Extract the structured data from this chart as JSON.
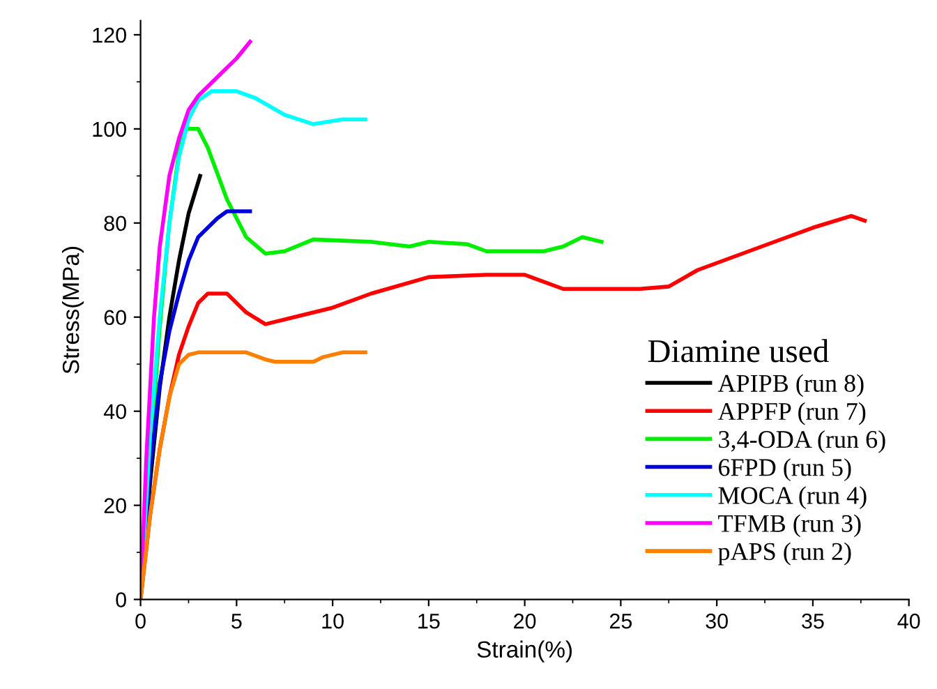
{
  "chart_data": {
    "type": "line",
    "xlabel": "Strain(%)",
    "ylabel": "Stress(MPa)",
    "legend_title": "Diamine used",
    "legend": "bottom right",
    "grid": false,
    "marker": "none",
    "line_style": "solid",
    "xlim": [
      0,
      40
    ],
    "xticks": [
      0,
      5,
      10,
      15,
      20,
      25,
      30,
      35,
      40
    ],
    "ylim": [
      0,
      123
    ],
    "yticks": [
      0,
      20,
      40,
      60,
      80,
      100,
      120
    ],
    "series": [
      {
        "name": "APIPB (run 8)",
        "color": "#000000",
        "x": [
          0,
          0.5,
          1,
          1.5,
          2,
          2.5,
          3.1
        ],
        "values": [
          0,
          25,
          45,
          60,
          72,
          82,
          90
        ]
      },
      {
        "name": "APPFP (run 7)",
        "color": "#ff0000",
        "x": [
          0,
          0.5,
          1,
          1.5,
          2,
          2.5,
          3,
          3.5,
          4.5,
          5.5,
          6.5,
          8,
          10,
          12,
          15,
          18,
          20,
          22,
          24,
          26,
          27.5,
          29,
          31,
          33,
          35,
          37,
          37.7
        ],
        "values": [
          0,
          18,
          32,
          43,
          52,
          58,
          63,
          65,
          65,
          61,
          58.5,
          60,
          62,
          65,
          68.5,
          69,
          69,
          66,
          66,
          66,
          66.5,
          70,
          73,
          76,
          79,
          81.5,
          80.5
        ]
      },
      {
        "name": "3,4-ODA (run 6)",
        "color": "#00ee00",
        "x": [
          0,
          0.5,
          1,
          1.5,
          2,
          2.3,
          3,
          3.5,
          4.5,
          5.5,
          6.5,
          7.5,
          9,
          12,
          14,
          15,
          17,
          18,
          21,
          22,
          23,
          24
        ],
        "values": [
          0,
          30,
          58,
          80,
          95,
          100,
          100,
          96,
          85,
          77,
          73.5,
          74,
          76.5,
          76,
          75,
          76,
          75.5,
          74,
          74,
          75,
          77,
          76
        ]
      },
      {
        "name": "6FPD (run 5)",
        "color": "#0000dd",
        "x": [
          0,
          0.5,
          1,
          1.5,
          2,
          2.5,
          3,
          4,
          4.5,
          5.7
        ],
        "values": [
          0,
          28,
          46,
          57,
          65,
          72,
          77,
          81,
          82.5,
          82.5
        ]
      },
      {
        "name": "MOCA (run 4)",
        "color": "#00ffff",
        "x": [
          0,
          0.5,
          1,
          1.5,
          2,
          2.5,
          3,
          3.7,
          5,
          6,
          7.5,
          9,
          10.5,
          11.7
        ],
        "values": [
          0,
          35,
          60,
          80,
          94,
          102,
          106,
          108,
          108,
          106.5,
          103,
          101,
          102,
          102
        ]
      },
      {
        "name": "TFMB (run 3)",
        "color": "#ff00ff",
        "x": [
          0,
          0.3,
          0.7,
          1,
          1.5,
          2,
          2.5,
          3,
          4,
          5,
          5.7
        ],
        "values": [
          0,
          30,
          60,
          75,
          90,
          98,
          104,
          107,
          111,
          115,
          118.5
        ]
      },
      {
        "name": "pAPS (run 2)",
        "color": "#ff8000",
        "x": [
          0,
          0.5,
          1,
          1.5,
          2,
          2.5,
          3,
          5.5,
          6.5,
          7,
          9,
          9.5,
          10.5,
          11.7
        ],
        "values": [
          0,
          18,
          32,
          43,
          50,
          52,
          52.5,
          52.5,
          51,
          50.5,
          50.5,
          51.5,
          52.5,
          52.5
        ]
      }
    ]
  }
}
